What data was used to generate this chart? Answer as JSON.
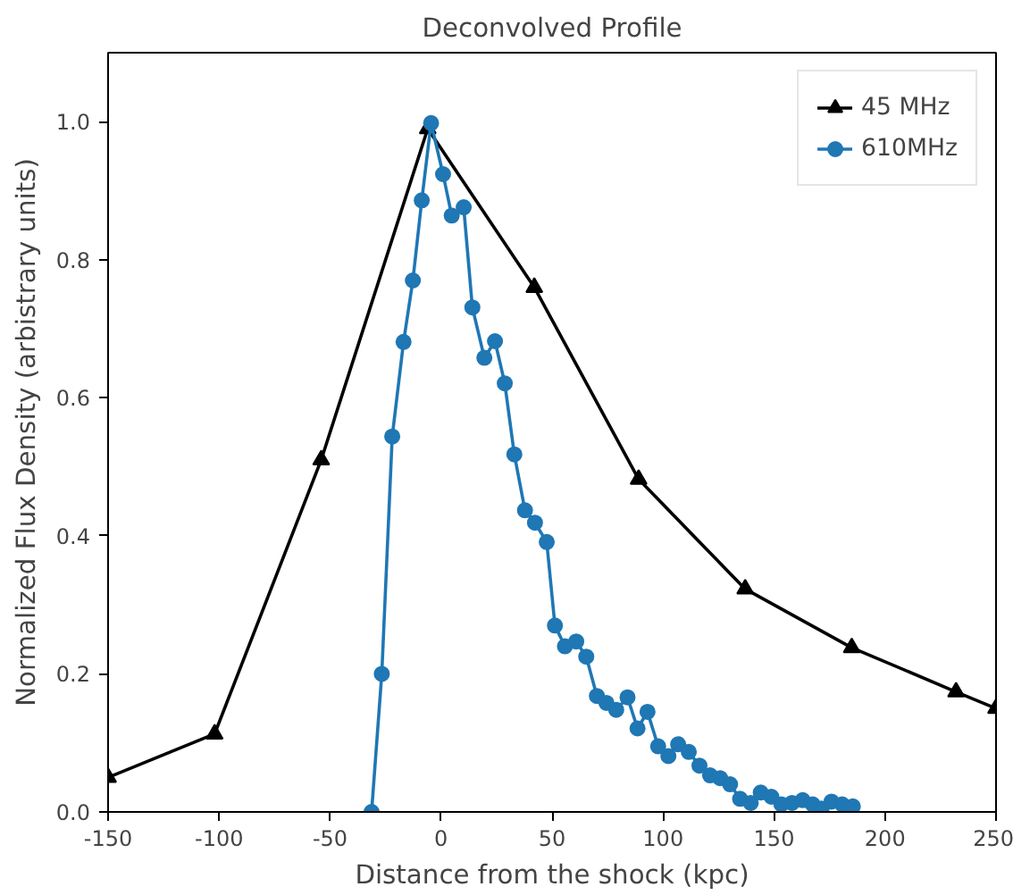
{
  "chart_data": {
    "type": "line",
    "title": "Deconvolved Profile",
    "xlabel": "Distance from the shock (kpc)",
    "ylabel": "Normalized Flux Density (arbistrary units)",
    "xlim": [
      -150,
      250
    ],
    "xticks": [
      -150,
      -100,
      -50,
      0,
      50,
      100,
      150,
      200,
      250
    ],
    "ylim": [
      0,
      1.1
    ],
    "yticks": [
      {
        "value": 0,
        "label": "0.0"
      },
      0.2,
      0.4,
      0.6,
      0.8,
      {
        "value": 1,
        "label": "1.0"
      }
    ],
    "grid": false,
    "legend": "top right",
    "series": [
      {
        "name": "45 MHz",
        "color": "#000000",
        "marker": "triangle",
        "x": [
          -150,
          -102,
          -54,
          -6,
          42,
          89,
          137,
          185,
          232,
          250
        ],
        "values": [
          0.05,
          0.113,
          0.51,
          0.99,
          0.76,
          0.482,
          0.323,
          0.238,
          0.174,
          0.15
        ]
      },
      {
        "name": "610MHz",
        "color": "#1f77b4",
        "marker": "circle",
        "x": [
          -31.3,
          -26.7,
          -22,
          -16.9,
          -12.7,
          -8.7,
          -4.5,
          0.9,
          4.8,
          10.2,
          14.1,
          19.5,
          24.3,
          28.7,
          33,
          37.8,
          42.3,
          47.6,
          51.3,
          55.8,
          60.9,
          65.4,
          70.2,
          74.5,
          78.9,
          84,
          88.5,
          93,
          97.8,
          102.4,
          106.8,
          111.6,
          116.4,
          121.2,
          125.7,
          130.2,
          134.7,
          139.5,
          144,
          148.8,
          153.3,
          158.1,
          162.9,
          167.4,
          171.4,
          175.9,
          180.7,
          185.5
        ],
        "values": [
          0.0,
          0.2,
          0.544,
          0.681,
          0.77,
          0.886,
          0.998,
          0.924,
          0.864,
          0.876,
          0.731,
          0.658,
          0.682,
          0.621,
          0.518,
          0.437,
          0.419,
          0.391,
          0.27,
          0.24,
          0.247,
          0.225,
          0.168,
          0.158,
          0.148,
          0.166,
          0.121,
          0.145,
          0.095,
          0.081,
          0.098,
          0.087,
          0.067,
          0.053,
          0.049,
          0.04,
          0.019,
          0.013,
          0.028,
          0.022,
          0.011,
          0.013,
          0.017,
          0.011,
          0.005,
          0.015,
          0.011,
          0.008
        ]
      }
    ]
  }
}
